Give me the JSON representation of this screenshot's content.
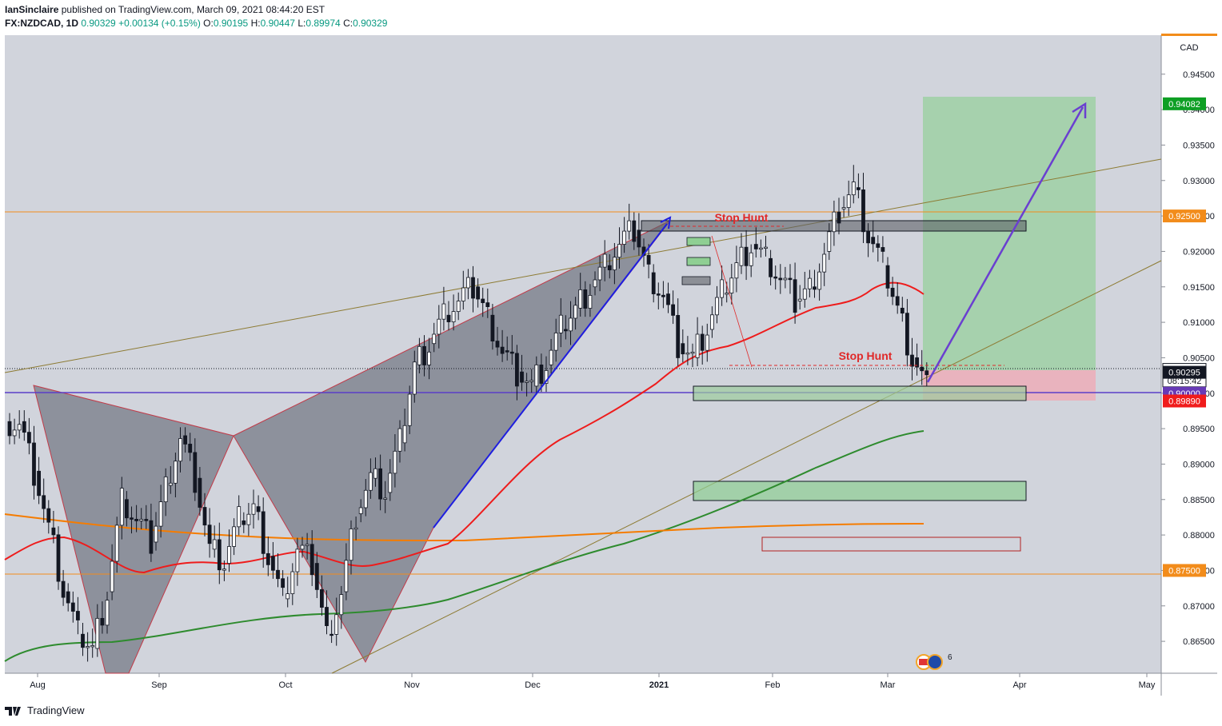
{
  "header": {
    "publisher": "IanSinclaire",
    "published_text": "published on TradingView.com, March 09, 2021 08:44:20 EST",
    "symbol": "FX:NZDCAD, 1D",
    "last": "0.90329",
    "change": "+0.00134 (+0.15%)",
    "o_label": "O:",
    "o_value": "0.90195",
    "h_label": "H:",
    "h_value": "0.90447",
    "l_label": "L:",
    "l_value": "0.89974",
    "c_label": "C:",
    "c_value": "0.90329"
  },
  "footer": {
    "logo_text": "TradingView"
  },
  "chart_data": {
    "type": "candlestick",
    "currency_label": "CAD",
    "ylim": [
      0.8605,
      0.9505
    ],
    "x_tick_labels": [
      "Aug",
      "Sep",
      "Oct",
      "Nov",
      "Dec",
      "2021",
      "Feb",
      "Mar",
      "Apr",
      "May"
    ],
    "y_tick_labels": [
      "0.94500",
      "0.94000",
      "0.93500",
      "0.93000",
      "0.92500",
      "0.92000",
      "0.91500",
      "0.91000",
      "0.90500",
      "0.90000",
      "0.89500",
      "0.89000",
      "0.88500",
      "0.88000",
      "0.87500",
      "0.87000",
      "0.86500"
    ],
    "price_tags": [
      {
        "text": "0.94082",
        "price": 0.94082,
        "color": "#0e9f24"
      },
      {
        "text": "0.92500",
        "price": 0.925,
        "color": "#f28c1b"
      },
      {
        "text": "0.90329",
        "price": 0.90329,
        "color": "#131722"
      },
      {
        "text": "08:15:42",
        "price": 0.9018,
        "color": "#131722"
      },
      {
        "text": "0.90295",
        "price": 0.90295,
        "color": "#ffffff"
      },
      {
        "text": "0.90000",
        "price": 0.9,
        "color": "#673ab7"
      },
      {
        "text": "0.89890",
        "price": 0.8989,
        "color": "#f01c1c"
      },
      {
        "text": "0.87500",
        "price": 0.875,
        "color": "#f28c1b"
      }
    ],
    "annotations": [
      "Stop Hunt",
      "Stop Hunt"
    ],
    "event_badge_count": "6",
    "series_close_approx": [
      0.896,
      0.889,
      0.881,
      0.872,
      0.866,
      0.864,
      0.872,
      0.885,
      0.882,
      0.879,
      0.887,
      0.894,
      0.888,
      0.878,
      0.876,
      0.882,
      0.884,
      0.877,
      0.871,
      0.878,
      0.876,
      0.866,
      0.872,
      0.883,
      0.888,
      0.886,
      0.893,
      0.904,
      0.907,
      0.911,
      0.913,
      0.915,
      0.911,
      0.906,
      0.903,
      0.901,
      0.904,
      0.909,
      0.912,
      0.915,
      0.918,
      0.921,
      0.923,
      0.917,
      0.914,
      0.907,
      0.905,
      0.909,
      0.914,
      0.918,
      0.921,
      0.919,
      0.916,
      0.913,
      0.915,
      0.92,
      0.926,
      0.929,
      0.922,
      0.918,
      0.912,
      0.905,
      0.901,
      0.9033
    ]
  }
}
